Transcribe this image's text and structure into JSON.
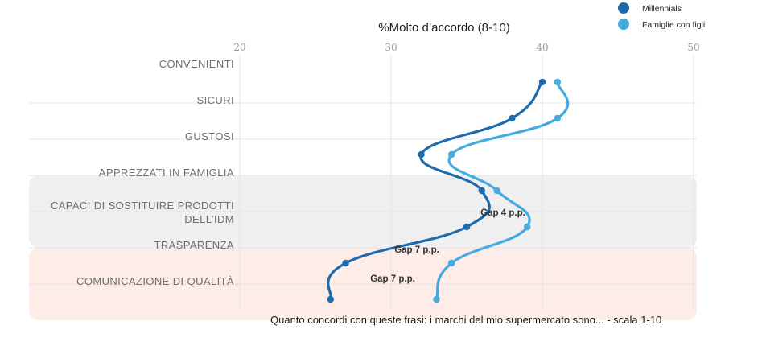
{
  "chart_data": {
    "type": "line",
    "title": "%Molto d’accordo (8-10)",
    "xlim": [
      20,
      50
    ],
    "xticks": [
      "20",
      "30",
      "40",
      "50"
    ],
    "categories": [
      "CONVENIENTI",
      "SICURI",
      "GUSTOSI",
      "APPREZZATI IN FAMIGLIA",
      "CAPACI DI SOSTITUIRE PRODOTTI DELL’IDM",
      "TRASPARENZA",
      "COMUNICAZIONE DI QUALITÀ"
    ],
    "series": [
      {
        "name": "Millennials",
        "color": "#1f6aad",
        "values": [
          40,
          38,
          32,
          36,
          35,
          27,
          26
        ]
      },
      {
        "name": "Famiglie con figli",
        "color": "#45aadf",
        "values": [
          41,
          41,
          34,
          37,
          39,
          34,
          33
        ]
      }
    ],
    "annotations": [
      "Gap 4 p.p.",
      "Gap 7 p.p.",
      "Gap 7 p.p."
    ],
    "bands": [
      {
        "categories": [
          "APPREZZATI IN FAMIGLIA",
          "CAPACI DI SOSTITUIRE PRODOTTI DELL’IDM"
        ],
        "color": "#efefef"
      },
      {
        "categories": [
          "TRASPARENZA",
          "COMUNICAZIONE DI QUALITÀ"
        ],
        "color": "#fdece8"
      }
    ],
    "grid": true,
    "legend": "top-right",
    "caption": "Quanto concordi con queste frasi: i marchi del mio supermercato sono... - scala 1-10"
  }
}
